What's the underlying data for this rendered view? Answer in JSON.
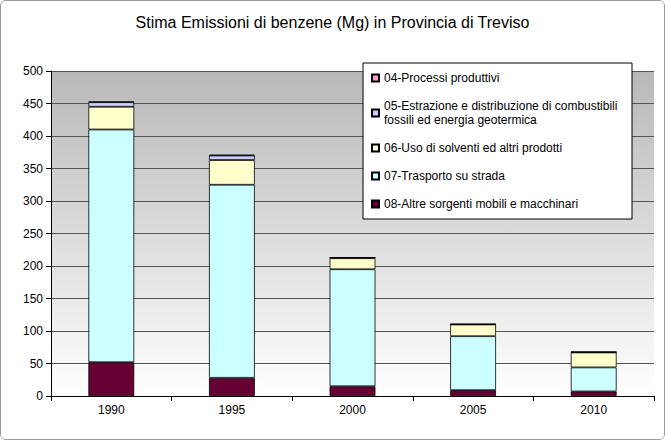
{
  "chart_data": {
    "type": "bar",
    "title": "Stima Emissioni di benzene (Mg) in Provincia di Treviso",
    "categories": [
      "1990",
      "1995",
      "2000",
      "2005",
      "2010"
    ],
    "series": [
      {
        "name": "04-Processi produttivi",
        "color": "#ff99cc",
        "values": [
          1,
          1,
          0,
          0,
          0.5
        ]
      },
      {
        "name": "05-Estrazione e distribuzione di combustibili fossili ed energia geotermica",
        "color": "#ccccff",
        "values": [
          7,
          7,
          1,
          0.5,
          0.5
        ]
      },
      {
        "name": "06-Uso di solventi ed altri prodotti",
        "color": "#ffffcc",
        "values": [
          35,
          38,
          17,
          18,
          23
        ]
      },
      {
        "name": "07-Trasporto su strada",
        "color": "#ccffff",
        "values": [
          358,
          297,
          180,
          83,
          37
        ]
      },
      {
        "name": "08-Altre sorgenti mobili e macchinari",
        "color": "#660033",
        "values": [
          52,
          28,
          15,
          9,
          7
        ]
      }
    ],
    "stacked": true,
    "ylim": [
      0,
      500
    ],
    "yticks": [
      0,
      50,
      100,
      150,
      200,
      250,
      300,
      350,
      400,
      450,
      500
    ],
    "grid": true,
    "legend": "top-right"
  }
}
